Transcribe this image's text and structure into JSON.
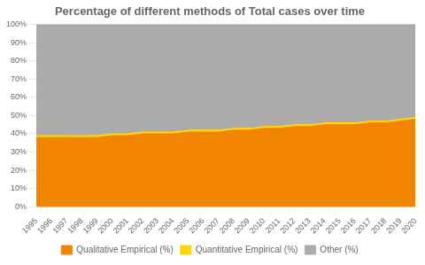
{
  "chart_data": {
    "type": "area",
    "stacked": true,
    "title": "Percentage of different methods of Total cases over time",
    "x": [
      1995,
      1996,
      1997,
      1998,
      1999,
      2000,
      2001,
      2002,
      2003,
      2004,
      2005,
      2006,
      2007,
      2008,
      2009,
      2010,
      2011,
      2012,
      2013,
      2014,
      2015,
      2016,
      2017,
      2018,
      2019,
      2020
    ],
    "series": [
      {
        "name": "Qualitative Empirical (%)",
        "color": "#F28500",
        "values": [
          38,
          38,
          38,
          38,
          38,
          39,
          39,
          40,
          40,
          40,
          41,
          41,
          41,
          42,
          42,
          43,
          43,
          44,
          44,
          45,
          45,
          45,
          46,
          46,
          47,
          48
        ]
      },
      {
        "name": "Quantitative Empirical (%)",
        "color": "#FFD700",
        "values": [
          1,
          1,
          1,
          1,
          1,
          1,
          1,
          1,
          1,
          1,
          1,
          1,
          1,
          1,
          1,
          1,
          1,
          1,
          1,
          1,
          1,
          1,
          1,
          1,
          1,
          1
        ]
      },
      {
        "name": "Other (%)",
        "color": "#ABABAB",
        "values": [
          61,
          61,
          61,
          61,
          61,
          60,
          60,
          59,
          59,
          59,
          58,
          58,
          58,
          57,
          57,
          56,
          56,
          55,
          55,
          54,
          54,
          54,
          53,
          53,
          52,
          51
        ]
      }
    ],
    "xlim": [
      1995,
      2020
    ],
    "xticks": [
      1995,
      1996,
      1997,
      1998,
      1999,
      2000,
      2001,
      2002,
      2003,
      2004,
      2005,
      2006,
      2007,
      2008,
      2009,
      2010,
      2011,
      2012,
      2013,
      2014,
      2015,
      2016,
      2017,
      2018,
      2019,
      2020
    ],
    "ylim": [
      0,
      100
    ],
    "yticks": [
      {
        "value": 0,
        "label": "0%"
      },
      {
        "value": 10,
        "label": "10%"
      },
      {
        "value": 20,
        "label": "20%"
      },
      {
        "value": 30,
        "label": "30%"
      },
      {
        "value": 40,
        "label": "40%"
      },
      {
        "value": 50,
        "label": "50%"
      },
      {
        "value": 60,
        "label": "60%"
      },
      {
        "value": 70,
        "label": "70%"
      },
      {
        "value": 80,
        "label": "80%"
      },
      {
        "value": 90,
        "label": "90%"
      },
      {
        "value": 100,
        "label": "100%"
      }
    ],
    "grid": true,
    "legend": "bottom"
  }
}
